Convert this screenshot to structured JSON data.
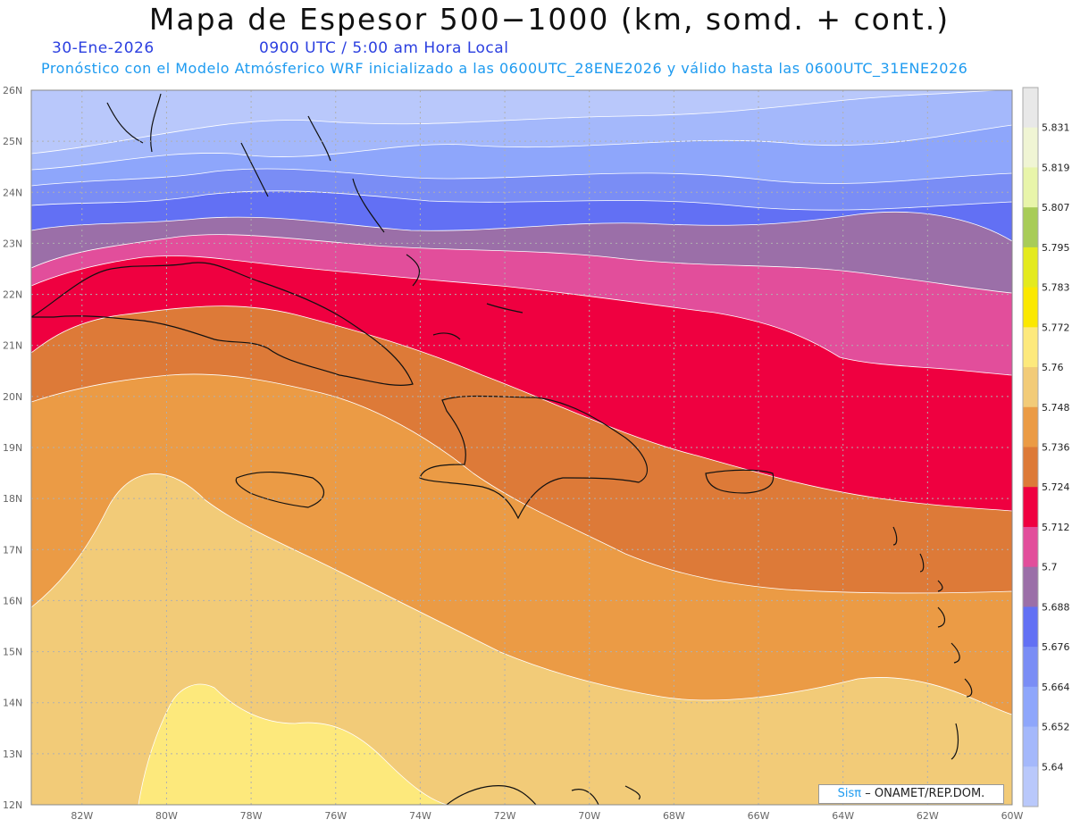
{
  "header": {
    "title": "Mapa de Espesor 500−1000 (km, somd. + cont.)",
    "date": "30-Ene-2026",
    "valid_time": "0900 UTC / 5:00 am Hora Local",
    "model_info": "Pronóstico con el Modelo Atmósferico WRF inicializado a las 0600UTC_28ENE2026 y válido hasta las  0600UTC_31ENE2026"
  },
  "map": {
    "lat_labels": [
      "26N",
      "25N",
      "24N",
      "23N",
      "22N",
      "21N",
      "20N",
      "19N",
      "18N",
      "17N",
      "16N",
      "15N",
      "14N",
      "13N",
      "12N"
    ],
    "lon_labels": [
      "82W",
      "80W",
      "78W",
      "76W",
      "74W",
      "72W",
      "70W",
      "68W",
      "66W",
      "64W",
      "62W",
      "60W"
    ],
    "lat_range": [
      12,
      26
    ],
    "lon_range": [
      -83.2,
      -60
    ]
  },
  "colorbar": {
    "levels": [
      "5.64",
      "5.652",
      "5.664",
      "5.676",
      "5.688",
      "5.7",
      "5.712",
      "5.724",
      "5.736",
      "5.748",
      "5.76",
      "5.772",
      "5.783",
      "5.795",
      "5.807",
      "5.819",
      "5.831"
    ],
    "colors": [
      "#b9c8fb",
      "#a4b8fb",
      "#8ea6fb",
      "#7a8df5",
      "#6270f4",
      "#9b6fa8",
      "#e24e9b",
      "#ef0040",
      "#dd7a38",
      "#eb9b45",
      "#f2cb78",
      "#fde97c",
      "#fbe800",
      "#e4ea1e",
      "#a8cc58",
      "#e8f5aa",
      "#f0f5d4",
      "#e8e8e8"
    ]
  },
  "credit": {
    "sis": "Sisπ",
    "text": "– ONAMET/REP.DOM."
  }
}
